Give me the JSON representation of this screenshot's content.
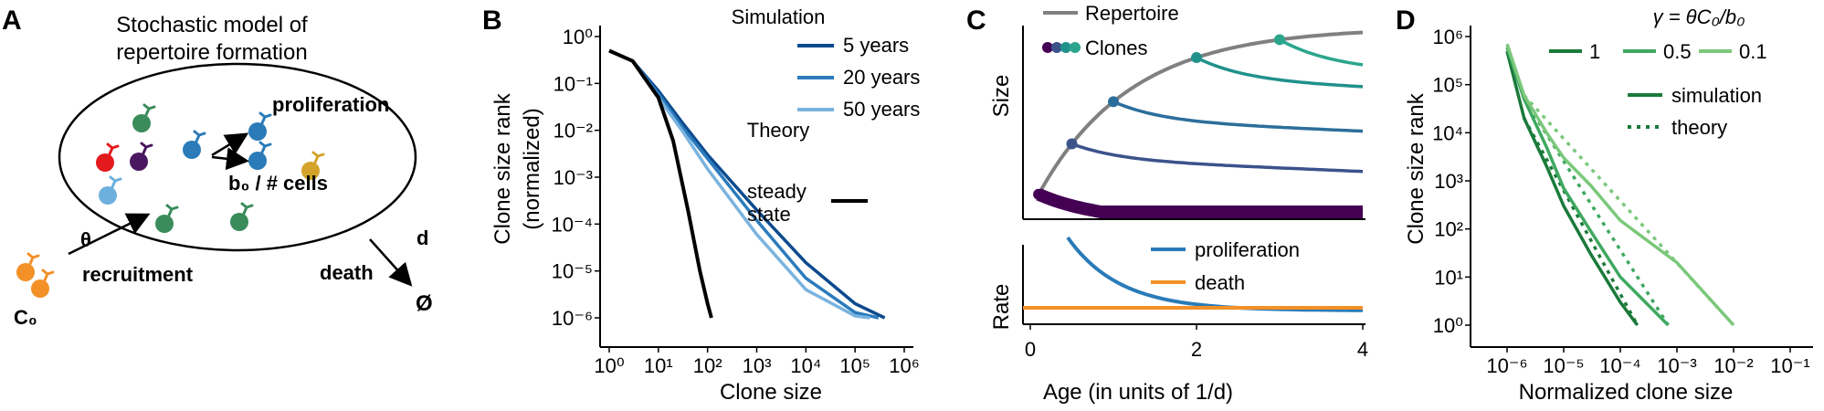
{
  "panels": {
    "A": {
      "letter": "A",
      "title_line1": "Stochastic model of",
      "title_line2": "repertoire formation",
      "proliferation": "proliferation",
      "rate": "b₀ / # cells",
      "theta": "θ",
      "recruitment": "recruitment",
      "C0": "C₀",
      "d": "d",
      "death": "death",
      "empty_set": "Ø",
      "colors": {
        "orange": "#f39028",
        "blue": "#2a7bb8",
        "lightblue": "#6db0dd",
        "green": "#3a8c5a",
        "red": "#e31a1c",
        "purple": "#4a1860",
        "gold": "#d4a32a"
      }
    },
    "B": {
      "letter": "B"
    },
    "C": {
      "letter": "C"
    },
    "D": {
      "letter": "D"
    }
  },
  "chart_data": [
    {
      "id": "B",
      "type": "line",
      "xlabel": "Clone size",
      "ylabel_line1": "Clone size rank",
      "ylabel_line2": "(normalized)",
      "xscale": "log",
      "yscale": "log",
      "xlim": [
        1,
        1000000
      ],
      "ylim": [
        5e-07,
        1
      ],
      "xticks": [
        "10⁰",
        "10¹",
        "10²",
        "10³",
        "10⁴",
        "10⁵",
        "10⁶"
      ],
      "yticks": [
        "10⁰",
        "10⁻¹",
        "10⁻²",
        "10⁻³",
        "10⁻⁴",
        "10⁻⁵",
        "10⁻⁶"
      ],
      "legend_title": "Simulation",
      "legend_title2": "Theory",
      "legend_position": "top-right",
      "series": [
        {
          "name": "5 years",
          "color": "#0c4a8e",
          "x": [
            1,
            3,
            10,
            30,
            100,
            1000,
            10000,
            100000,
            400000
          ],
          "y": [
            0.5,
            0.3,
            0.07,
            0.015,
            0.003,
            0.0002,
            1.5e-05,
            2e-06,
            1e-06
          ]
        },
        {
          "name": "20 years",
          "color": "#2b7bbd",
          "x": [
            1,
            3,
            10,
            30,
            100,
            1000,
            10000,
            100000,
            300000
          ],
          "y": [
            0.5,
            0.3,
            0.06,
            0.012,
            0.0025,
            0.00012,
            7e-06,
            1.3e-06,
            1e-06
          ]
        },
        {
          "name": "50 years",
          "color": "#7ab3df",
          "x": [
            1,
            3,
            10,
            30,
            100,
            1000,
            10000,
            100000,
            200000
          ],
          "y": [
            0.5,
            0.3,
            0.05,
            0.01,
            0.0015,
            6e-05,
            4e-06,
            1.1e-06,
            1e-06
          ]
        },
        {
          "name": "steady state",
          "color": "#000000",
          "x": [
            1,
            3,
            10,
            20,
            40,
            70,
            100,
            120
          ],
          "y": [
            0.5,
            0.3,
            0.05,
            0.006,
            0.0002,
            1e-05,
            2e-06,
            1e-06
          ]
        }
      ],
      "legend_series_names": {
        "steady": "steady",
        "state": "state"
      }
    },
    {
      "id": "C",
      "type": "line",
      "xlabel": "Age (in units of 1/d)",
      "ylabel_top": "Size",
      "ylabel_bottom": "Rate",
      "xlim": [
        0,
        4
      ],
      "xticks": [
        "0",
        "2",
        "4"
      ],
      "legend_top": [
        "Repertoire",
        "Clones"
      ],
      "legend_bottom": [
        "proliferation",
        "death"
      ],
      "colors": {
        "repertoire": "#808080",
        "proliferation": "#2a7bb8",
        "death": "#f39028",
        "clones": [
          "#440154",
          "#3b528b",
          "#21918c",
          "#2ca58d"
        ]
      },
      "clone_starts": [
        0.1,
        0.5,
        1.0,
        2.0,
        3.0
      ],
      "death_rate": 0.15
    },
    {
      "id": "D",
      "type": "line",
      "xlabel": "Normalized clone size",
      "ylabel": "Clone size rank",
      "xscale": "log",
      "yscale": "log",
      "xlim": [
        5e-07,
        0.1
      ],
      "ylim": [
        1,
        1000000
      ],
      "xticks": [
        "10⁻⁶",
        "10⁻⁵",
        "10⁻⁴",
        "10⁻³",
        "10⁻²",
        "10⁻¹"
      ],
      "yticks": [
        "10⁶",
        "10⁵",
        "10⁴",
        "10³",
        "10²",
        "10¹",
        "10⁰"
      ],
      "legend_title": "γ = θC₀/b₀",
      "legend_position": "top-right",
      "legend_style": [
        "simulation",
        "theory"
      ],
      "series": [
        {
          "name": "1",
          "color": "#1a7a3a",
          "x": [
            1e-06,
            2e-06,
            5e-06,
            1e-05,
            3e-05,
            0.0001,
            0.0002
          ],
          "y": [
            500000,
            20000,
            2000,
            300,
            30,
            3,
            1
          ]
        },
        {
          "name": "0.5",
          "color": "#3fa860",
          "x": [
            1e-06,
            2e-06,
            5e-06,
            1e-05,
            3e-05,
            0.0001,
            0.0007
          ],
          "y": [
            600000,
            50000,
            5000,
            700,
            90,
            10,
            1
          ]
        },
        {
          "name": "0.1",
          "color": "#7bc87b",
          "x": [
            1e-06,
            2e-06,
            5e-06,
            1e-05,
            3e-05,
            0.0001,
            0.001,
            0.01
          ],
          "y": [
            700000,
            60000,
            10000,
            3000,
            800,
            150,
            20,
            1
          ]
        }
      ]
    }
  ]
}
